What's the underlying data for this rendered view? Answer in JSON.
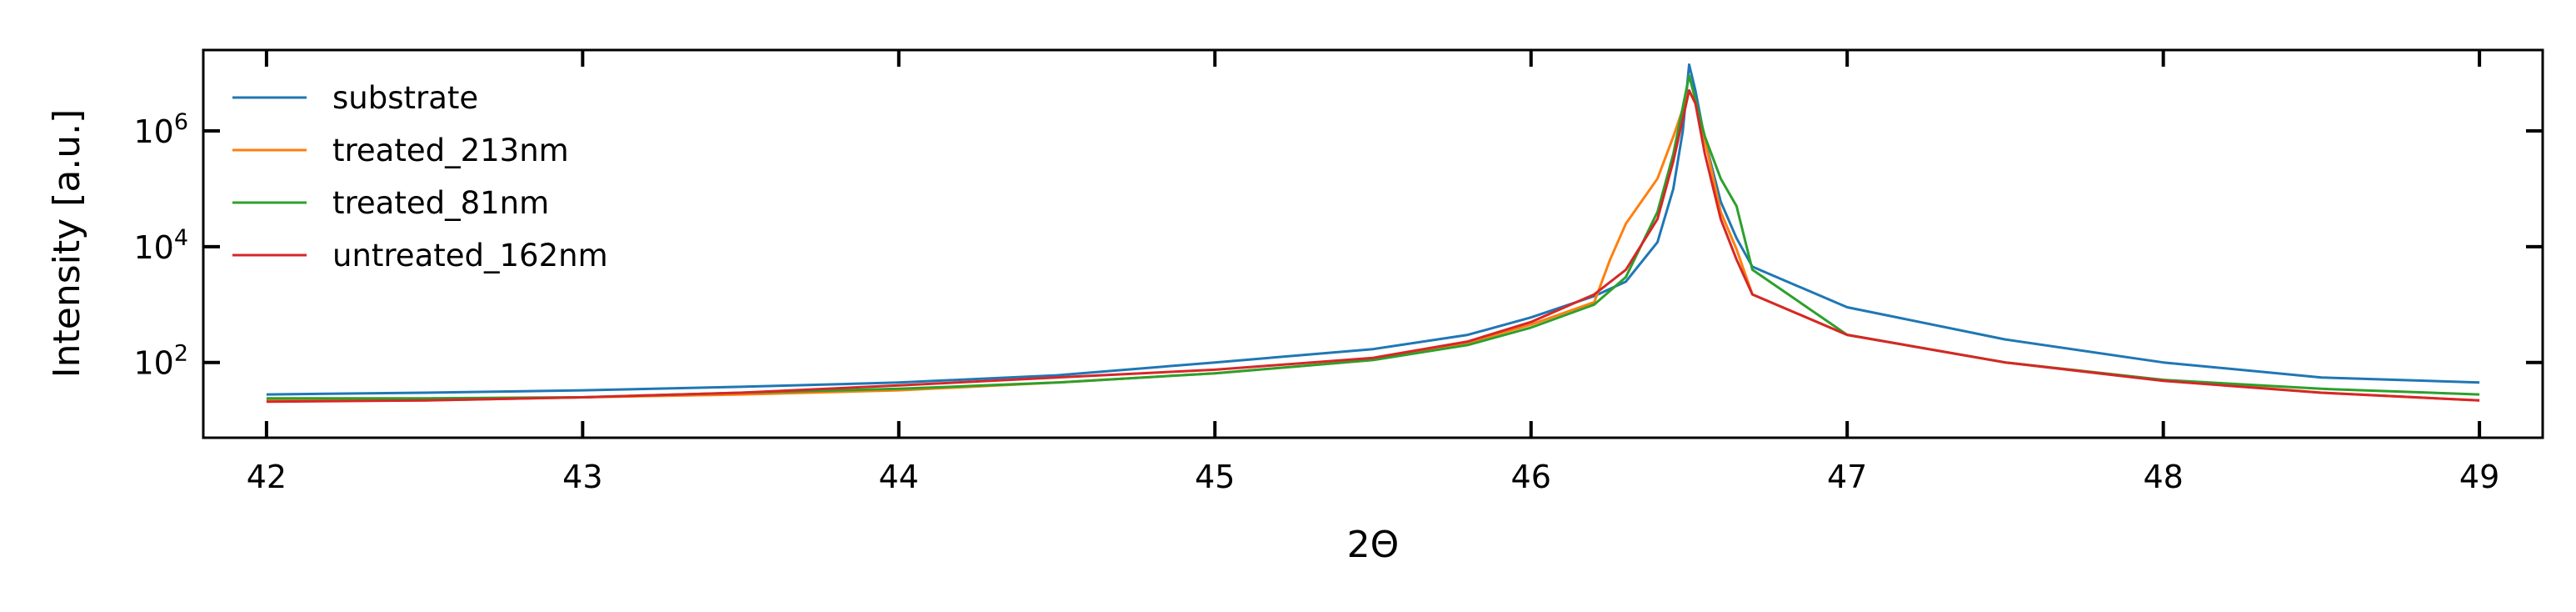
{
  "chart_data": {
    "type": "line",
    "title": "",
    "xlabel": "2Θ",
    "ylabel": "Intensity [a.u.]",
    "xlim": [
      41.8,
      49.2
    ],
    "ylim": [
      5,
      25000000
    ],
    "yscale": "log",
    "xticks": [
      42,
      43,
      44,
      45,
      46,
      47,
      48,
      49
    ],
    "xtick_labels": [
      "42",
      "43",
      "44",
      "45",
      "46",
      "47",
      "48",
      "49"
    ],
    "yticks": [
      100,
      10000,
      1000000
    ],
    "ytick_labels": [
      {
        "base": "10",
        "exp": "2"
      },
      {
        "base": "10",
        "exp": "4"
      },
      {
        "base": "10",
        "exp": "6"
      }
    ],
    "grid": false,
    "legend_position": "top-left",
    "series": [
      {
        "name": "substrate",
        "color": "#1f77b4",
        "x": [
          42.0,
          42.5,
          43.0,
          43.5,
          44.0,
          44.5,
          45.0,
          45.5,
          45.8,
          46.0,
          46.2,
          46.3,
          46.4,
          46.45,
          46.48,
          46.5,
          46.52,
          46.55,
          46.6,
          46.65,
          46.7,
          47.0,
          47.5,
          48.0,
          48.5,
          49.0
        ],
        "y": [
          28,
          30,
          33,
          38,
          45,
          60,
          100,
          170,
          300,
          600,
          1400,
          2500,
          12000,
          100000,
          1000000,
          14000000,
          5000000,
          700000,
          60000,
          14000,
          4500,
          900,
          250,
          100,
          55,
          45
        ]
      },
      {
        "name": "treated_213nm",
        "color": "#ff7f0e",
        "x": [
          42.0,
          42.5,
          43.0,
          43.5,
          44.0,
          44.5,
          45.0,
          45.5,
          45.8,
          46.0,
          46.2,
          46.25,
          46.3,
          46.4,
          46.45,
          46.5,
          46.52,
          46.55,
          46.6,
          46.65,
          46.7,
          47.0,
          47.5,
          48.0,
          48.5,
          49.0
        ],
        "y": [
          22,
          22,
          25,
          28,
          33,
          45,
          65,
          110,
          220,
          450,
          1100,
          6000,
          25000,
          150000,
          800000,
          5000000,
          3000000,
          700000,
          40000,
          9000,
          1500,
          300,
          100,
          50,
          30,
          22
        ]
      },
      {
        "name": "treated_81nm",
        "color": "#2ca02c",
        "x": [
          42.0,
          42.5,
          43.0,
          43.5,
          44.0,
          44.5,
          45.0,
          45.5,
          45.8,
          46.0,
          46.2,
          46.3,
          46.4,
          46.45,
          46.5,
          46.52,
          46.55,
          46.6,
          46.65,
          46.7,
          47.0,
          47.5,
          48.0,
          48.5,
          49.0
        ],
        "y": [
          24,
          24,
          25,
          30,
          35,
          45,
          65,
          110,
          200,
          400,
          1000,
          3000,
          40000,
          400000,
          9000000,
          3500000,
          800000,
          150000,
          50000,
          4000,
          300,
          100,
          50,
          35,
          28
        ]
      },
      {
        "name": "untreated_162nm",
        "color": "#d62728",
        "x": [
          42.0,
          42.5,
          43.0,
          43.5,
          44.0,
          44.5,
          45.0,
          45.5,
          45.8,
          46.0,
          46.2,
          46.3,
          46.4,
          46.45,
          46.5,
          46.52,
          46.55,
          46.6,
          46.65,
          46.7,
          47.0,
          47.5,
          48.0,
          48.5,
          49.0
        ],
        "y": [
          21,
          22,
          25,
          30,
          40,
          55,
          75,
          120,
          230,
          500,
          1500,
          4000,
          30000,
          300000,
          5000000,
          3000000,
          400000,
          30000,
          6000,
          1500,
          300,
          100,
          48,
          30,
          22
        ]
      }
    ]
  }
}
